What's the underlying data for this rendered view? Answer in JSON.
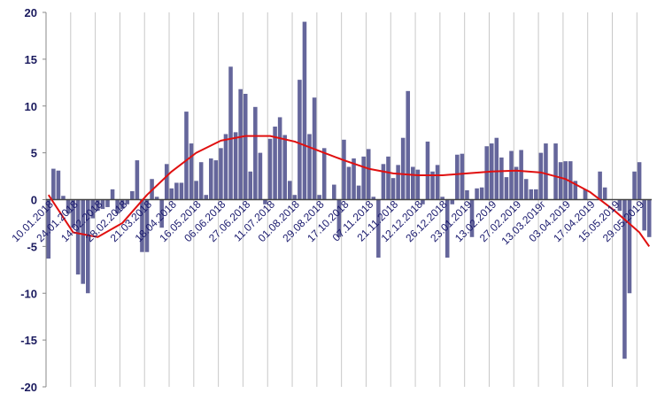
{
  "chart_data": {
    "type": "bar",
    "categories": [
      "10.01.2018",
      null,
      null,
      null,
      null,
      "24.01.2018",
      null,
      null,
      null,
      null,
      "14.02.2018",
      null,
      null,
      null,
      null,
      "28.02.2018",
      null,
      null,
      null,
      null,
      "21.03.2018",
      null,
      null,
      null,
      null,
      "18.04.2018",
      null,
      null,
      null,
      null,
      "16.05.2018",
      null,
      null,
      null,
      null,
      "06.06.2018",
      null,
      null,
      null,
      null,
      "27.06.2018",
      null,
      null,
      null,
      null,
      "11.07.2018",
      null,
      null,
      null,
      null,
      "01.08.2018",
      null,
      null,
      null,
      null,
      "29.08.2018",
      null,
      null,
      null,
      null,
      "17.10.2018",
      null,
      null,
      null,
      null,
      "07.11.2018",
      null,
      null,
      null,
      null,
      "21.11.2018",
      null,
      null,
      null,
      null,
      "12.12.2018",
      null,
      null,
      null,
      null,
      "26.12.2018",
      null,
      null,
      null,
      null,
      "23.01.2019",
      null,
      null,
      null,
      null,
      "13.02.2019",
      null,
      null,
      null,
      null,
      "27.02.2019",
      null,
      null,
      null,
      null,
      "13.03.2019г",
      null,
      null,
      null,
      null,
      "03.04.2019",
      null,
      null,
      null,
      null,
      "17.04.2019",
      null,
      null,
      null,
      null,
      "15.05.2019",
      null,
      null,
      null,
      null,
      "29.05.2019",
      null,
      null
    ],
    "series": [
      {
        "type": "bar",
        "color": "#65669b",
        "values": [
          -6.3,
          3.3,
          3.1,
          0.4,
          -1.5,
          -3,
          -8,
          -9,
          -10,
          -2,
          -1.2,
          -1,
          -0.8,
          1.1,
          -1.5,
          -1,
          -0.5,
          0.9,
          4.2,
          -5.6,
          -5.6,
          2.2,
          0.3,
          -3,
          3.8,
          1.2,
          1.8,
          1.8,
          9.4,
          6,
          2,
          4,
          0.5,
          4.4,
          4.2,
          5.5,
          7,
          14.2,
          7.2,
          11.8,
          11.3,
          3,
          9.9,
          5,
          -0.5,
          6.5,
          7.8,
          8.8,
          6.9,
          2,
          0.5,
          12.8,
          19,
          7,
          10.9,
          0.5,
          5.5,
          0,
          1.6,
          -4,
          6.4,
          3.5,
          4.4,
          1.5,
          4.6,
          5.4,
          0.3,
          -6.2,
          3.8,
          4.6,
          2.3,
          3.7,
          6.6,
          11.6,
          3.5,
          3.2,
          -0.5,
          6.2,
          3,
          3.7,
          0.3,
          -6.2,
          -0.5,
          4.8,
          4.9,
          1,
          -4,
          1.2,
          1.3,
          5.7,
          6,
          6.6,
          4.5,
          2.4,
          5.2,
          3.5,
          5.3,
          2.2,
          1.1,
          1.1,
          5,
          6,
          0,
          6,
          4,
          4.1,
          4.1,
          2,
          0,
          1.1,
          0,
          0,
          3,
          1.3,
          0,
          0,
          -1.2,
          -17,
          -10,
          3,
          4,
          -3.3,
          -4
        ]
      },
      {
        "type": "line",
        "color": "#e01010",
        "x": [
          0,
          5,
          10,
          15,
          20,
          25,
          30,
          35,
          40,
          45,
          50,
          55,
          60,
          65,
          70,
          75,
          80,
          85,
          90,
          95,
          100,
          105,
          110,
          115,
          120,
          122
        ],
        "values": [
          0.5,
          -3.5,
          -4,
          -2.5,
          0.5,
          3,
          5,
          6.3,
          6.8,
          6.8,
          6.2,
          5.2,
          4.2,
          3.3,
          2.8,
          2.6,
          2.6,
          2.8,
          3,
          3.1,
          2.9,
          2.2,
          0.8,
          -1.2,
          -3.5,
          -5
        ]
      }
    ],
    "ylim": [
      -20,
      20
    ],
    "yticks": [
      -20,
      -15,
      -10,
      -5,
      0,
      5,
      10,
      15,
      20
    ],
    "grid": true
  }
}
